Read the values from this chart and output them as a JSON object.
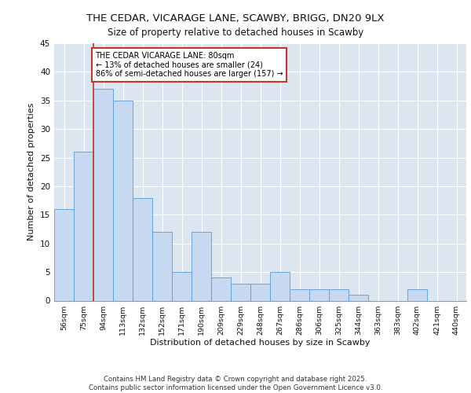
{
  "title_line1": "THE CEDAR, VICARAGE LANE, SCAWBY, BRIGG, DN20 9LX",
  "title_line2": "Size of property relative to detached houses in Scawby",
  "xlabel": "Distribution of detached houses by size in Scawby",
  "ylabel": "Number of detached properties",
  "categories": [
    "56sqm",
    "75sqm",
    "94sqm",
    "113sqm",
    "132sqm",
    "152sqm",
    "171sqm",
    "190sqm",
    "209sqm",
    "229sqm",
    "248sqm",
    "267sqm",
    "286sqm",
    "306sqm",
    "325sqm",
    "344sqm",
    "363sqm",
    "383sqm",
    "402sqm",
    "421sqm",
    "440sqm"
  ],
  "values": [
    16,
    26,
    37,
    35,
    18,
    12,
    5,
    12,
    4,
    3,
    3,
    5,
    2,
    2,
    2,
    1,
    0,
    0,
    2,
    0,
    0
  ],
  "bar_color": "#c6d9f0",
  "bar_edge_color": "#5b9bd5",
  "background_color": "#dce6f1",
  "grid_color": "#ffffff",
  "vline_color": "#c0392b",
  "annotation_text": "THE CEDAR VICARAGE LANE: 80sqm\n← 13% of detached houses are smaller (24)\n86% of semi-detached houses are larger (157) →",
  "annotation_box_color": "#c0392b",
  "footer_text": "Contains HM Land Registry data © Crown copyright and database right 2025.\nContains public sector information licensed under the Open Government Licence v3.0.",
  "ylim": [
    0,
    45
  ],
  "yticks": [
    0,
    5,
    10,
    15,
    20,
    25,
    30,
    35,
    40,
    45
  ]
}
